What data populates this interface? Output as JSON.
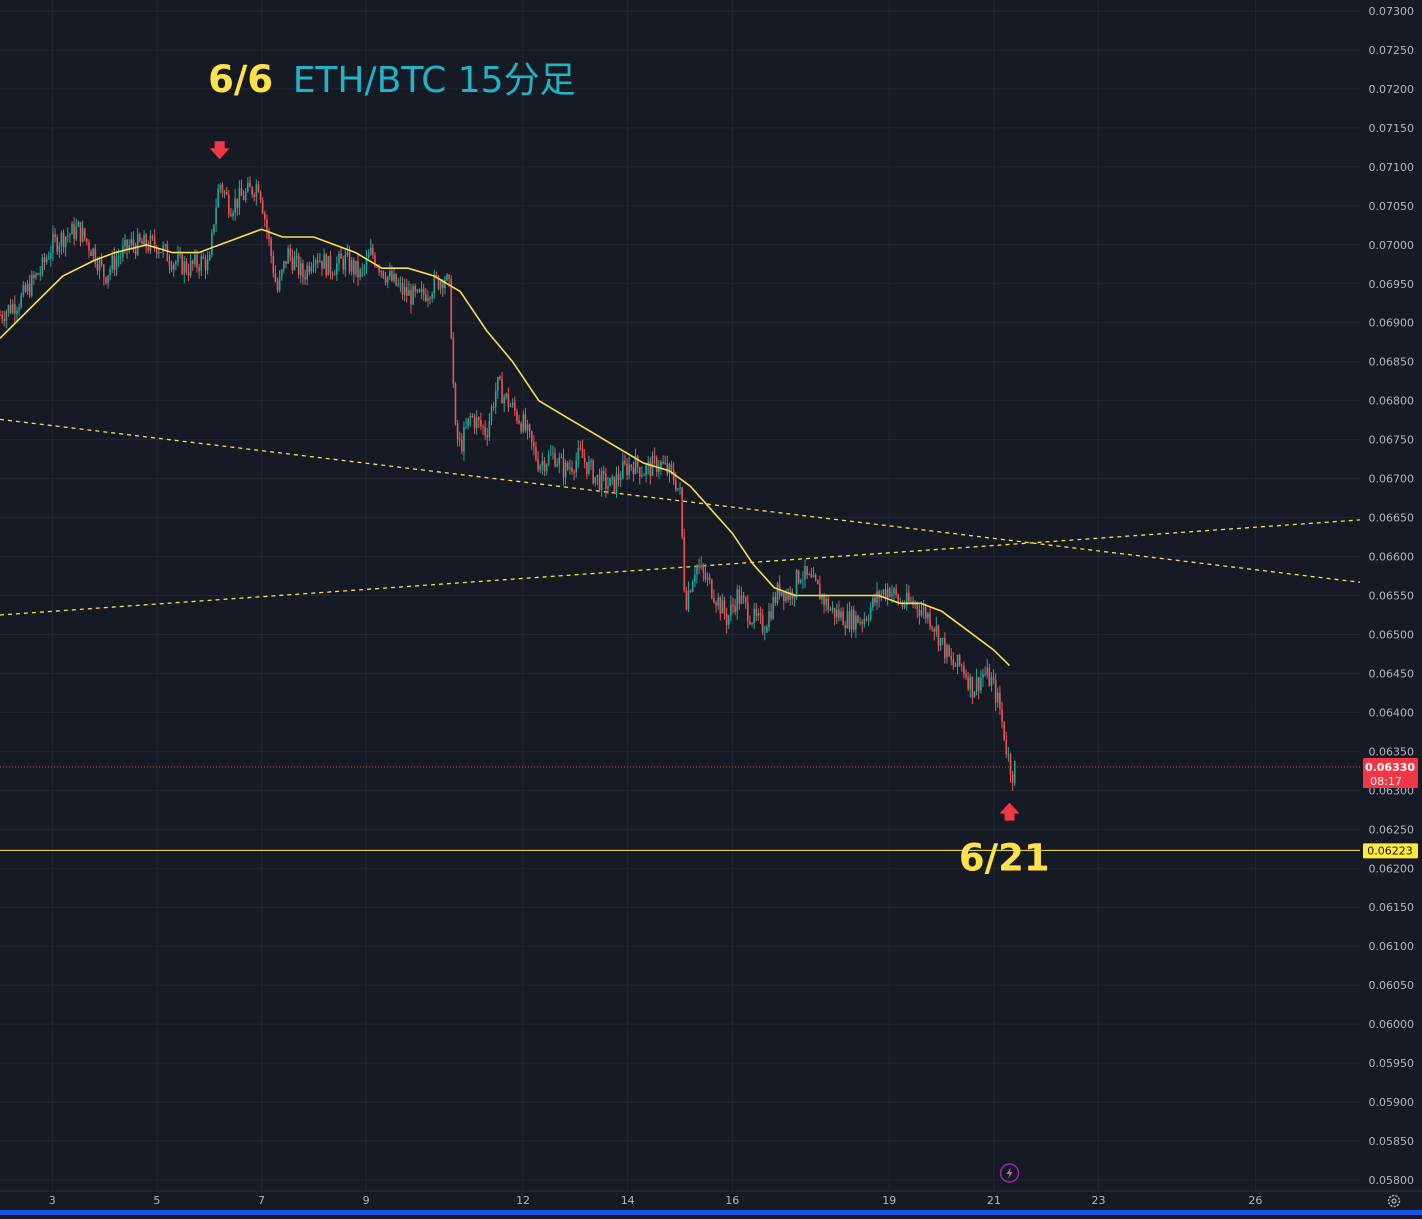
{
  "chart_data": {
    "type": "line",
    "title": "ETH/BTC 15分足",
    "symbol": "ETH/BTC",
    "timeframe": "15分足",
    "x_unit": "day of month (June)",
    "xlim": [
      2.0,
      28.0
    ],
    "ylim": [
      0.058,
      0.073
    ],
    "x_tick_labels": [
      "3",
      "5",
      "7",
      "9",
      "12",
      "14",
      "16",
      "19",
      "21",
      "23",
      "26"
    ],
    "x_tick_values": [
      3,
      5,
      7,
      9,
      12,
      14,
      16,
      19,
      21,
      23,
      26
    ],
    "y_tick_labels": [
      "0.07300",
      "0.07250",
      "0.07200",
      "0.07150",
      "0.07100",
      "0.07050",
      "0.07000",
      "0.06950",
      "0.06900",
      "0.06850",
      "0.06800",
      "0.06750",
      "0.06700",
      "0.06650",
      "0.06600",
      "0.06550",
      "0.06500",
      "0.06450",
      "0.06400",
      "0.06350",
      "0.06300",
      "0.06250",
      "0.06200",
      "0.06150",
      "0.06100",
      "0.06050",
      "0.06000",
      "0.05950",
      "0.05900",
      "0.05850",
      "0.05800"
    ],
    "y_tick_values": [
      0.073,
      0.0725,
      0.072,
      0.0715,
      0.071,
      0.0705,
      0.07,
      0.0695,
      0.069,
      0.0685,
      0.068,
      0.0675,
      0.067,
      0.0665,
      0.066,
      0.0655,
      0.065,
      0.0645,
      0.064,
      0.0635,
      0.063,
      0.0625,
      0.062,
      0.0615,
      0.061,
      0.0605,
      0.06,
      0.0595,
      0.059,
      0.0585,
      0.058
    ],
    "grid": true,
    "price_series": {
      "x": [
        2.0,
        2.4,
        2.8,
        3.0,
        3.2,
        3.5,
        3.8,
        4.0,
        4.2,
        4.5,
        4.8,
        5.0,
        5.3,
        5.6,
        5.9,
        6.0,
        6.1,
        6.2,
        6.4,
        6.6,
        6.8,
        6.95,
        7.1,
        7.3,
        7.5,
        7.8,
        8.0,
        8.3,
        8.6,
        8.9,
        9.1,
        9.4,
        9.7,
        10.0,
        10.3,
        10.5,
        10.6,
        10.7,
        10.8,
        11.0,
        11.3,
        11.5,
        11.8,
        12.0,
        12.3,
        12.6,
        12.8,
        13.1,
        13.4,
        13.7,
        13.9,
        14.1,
        14.3,
        14.6,
        14.9,
        15.0,
        15.1,
        15.3,
        15.6,
        15.9,
        16.1,
        16.4,
        16.6,
        16.9,
        17.1,
        17.3,
        17.6,
        17.9,
        18.2,
        18.5,
        18.8,
        19.0,
        19.2,
        19.5,
        19.8,
        20.0,
        20.2,
        20.4,
        20.6,
        20.8,
        20.95,
        21.1,
        21.25,
        21.35,
        21.4
      ],
      "y": [
        0.0691,
        0.0693,
        0.0697,
        0.07,
        0.0701,
        0.0702,
        0.0699,
        0.0696,
        0.0698,
        0.07,
        0.07,
        0.07,
        0.0698,
        0.0697,
        0.0698,
        0.0697,
        0.0704,
        0.0708,
        0.0705,
        0.0706,
        0.0707,
        0.0708,
        0.0702,
        0.0694,
        0.0699,
        0.0696,
        0.0699,
        0.0697,
        0.0698,
        0.0696,
        0.0699,
        0.0696,
        0.0694,
        0.0693,
        0.0695,
        0.0696,
        0.0694,
        0.0676,
        0.0674,
        0.0678,
        0.0676,
        0.0682,
        0.0679,
        0.0677,
        0.0672,
        0.0673,
        0.0671,
        0.0673,
        0.067,
        0.0669,
        0.0671,
        0.0672,
        0.0671,
        0.0672,
        0.067,
        0.0668,
        0.0654,
        0.0659,
        0.0656,
        0.0652,
        0.0655,
        0.0652,
        0.0651,
        0.0656,
        0.0655,
        0.0658,
        0.0656,
        0.0653,
        0.0652,
        0.0652,
        0.0655,
        0.0656,
        0.0654,
        0.0654,
        0.0652,
        0.0649,
        0.0646,
        0.0646,
        0.0643,
        0.0645,
        0.0644,
        0.0641,
        0.0635,
        0.0632,
        0.0633
      ]
    },
    "moving_average": {
      "x": [
        2.0,
        2.6,
        3.2,
        3.8,
        4.2,
        4.8,
        5.3,
        5.8,
        6.2,
        6.6,
        7.0,
        7.4,
        8.0,
        8.8,
        9.3,
        9.8,
        10.3,
        10.8,
        11.3,
        11.8,
        12.3,
        12.8,
        13.3,
        13.8,
        14.3,
        14.8,
        15.2,
        15.6,
        16.0,
        16.4,
        16.8,
        17.2,
        17.6,
        18.0,
        18.4,
        18.8,
        19.2,
        19.6,
        20.0,
        20.4,
        20.8,
        21.0,
        21.3
      ],
      "y": [
        0.0688,
        0.0692,
        0.0696,
        0.0698,
        0.0699,
        0.07,
        0.0699,
        0.0699,
        0.07,
        0.0701,
        0.0702,
        0.0701,
        0.0701,
        0.0699,
        0.0697,
        0.0697,
        0.0696,
        0.0694,
        0.0689,
        0.0685,
        0.068,
        0.0678,
        0.0676,
        0.0674,
        0.0672,
        0.0671,
        0.0669,
        0.0666,
        0.0663,
        0.0659,
        0.0656,
        0.0655,
        0.0655,
        0.0655,
        0.0655,
        0.0655,
        0.0654,
        0.0654,
        0.0653,
        0.0651,
        0.0649,
        0.0648,
        0.0646
      ]
    },
    "trendlines": [
      {
        "x1": 2.0,
        "y1": 0.06776,
        "x2": 28.0,
        "y2": 0.06567,
        "style": "dashed"
      },
      {
        "x1": 2.0,
        "y1": 0.06525,
        "x2": 28.0,
        "y2": 0.06647,
        "style": "dashed"
      }
    ],
    "current_price": {
      "value": 0.0633,
      "label": "0.06330",
      "countdown": "08:17",
      "color": "#f23645"
    },
    "support_line": {
      "value": 0.06223,
      "label": "0.06223",
      "color": "#ffeb3b"
    },
    "annotations": [
      {
        "text": "6/6",
        "x": 6.6,
        "y": 0.07196,
        "color": "#ffe14d",
        "kind": "date"
      },
      {
        "text": "ETH/BTC 15分足",
        "x": 10.3,
        "y": 0.07196,
        "color": "#1fb4c8",
        "kind": "title"
      },
      {
        "text": "6/21",
        "x": 21.2,
        "y": 0.06197,
        "color": "#ffe14d",
        "kind": "date"
      }
    ],
    "markers": [
      {
        "x": 6.2,
        "y": 0.0712,
        "direction": "down",
        "color": "#f23645"
      },
      {
        "x": 21.3,
        "y": 0.06274,
        "direction": "up",
        "color": "#f23645"
      }
    ],
    "colors": {
      "background": "#161a25",
      "up": "#26a69a",
      "down": "#ef5350",
      "ma": "#f5e04c",
      "grid": "#232733",
      "axis_text": "#b2b5be"
    },
    "icons": {
      "bolt": "lightning-bolt-icon",
      "settings": "gear-icon"
    }
  }
}
